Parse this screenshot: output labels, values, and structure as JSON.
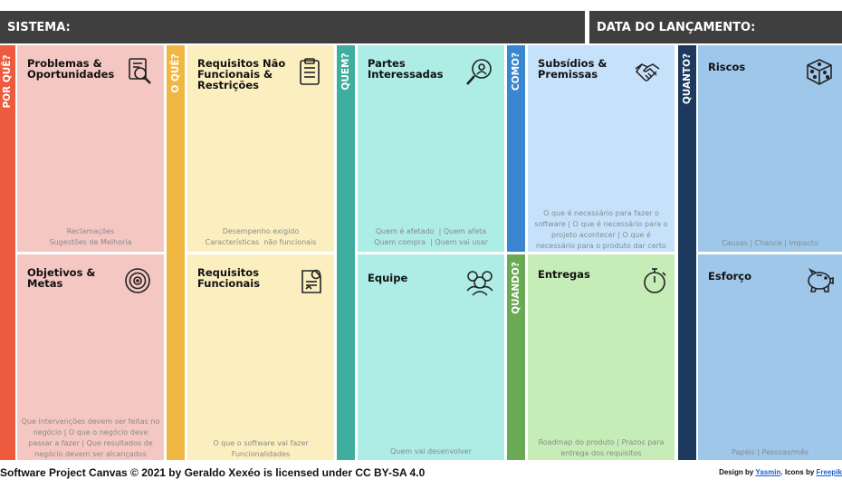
{
  "header": {
    "system_label": "SISTEMA:",
    "launch_label": "DATA DO LANÇAMENTO:"
  },
  "bands": {
    "por_que": "POR QUÊ?",
    "o_que": "O QUÊ?",
    "quem": "QUEM?",
    "como": "COMO?",
    "quando": "QUANDO?",
    "quanto": "QUANTO?"
  },
  "cells": {
    "problemas": {
      "title": "Problemas &\nOportunidades",
      "desc": "Reclamações\nSugestões de Melhoria",
      "icon": "magnifier-checklist-icon"
    },
    "objetivos": {
      "title": "Objetivos &\nMetas",
      "desc": "Que intervenções devem ser feitas no negócio | O que o negócio deve passar a fazer | Que resultados de negócio devem ser alcançados",
      "icon": "target-icon"
    },
    "requisitos_nf": {
      "title": "Requisitos Não\nFuncionais &\nRestrições",
      "desc": "Desempenho exigido\nCaracterísticas  não funcionais",
      "icon": "clipboard-icon"
    },
    "requisitos_f": {
      "title": "Requisitos\nFuncionais",
      "desc": "O que o software vai fazer\nFuncionalidades",
      "icon": "gear-document-icon"
    },
    "partes": {
      "title": "Partes\nInteressadas",
      "desc": "Quem é afetado  | Quem afeta\nQuem compra  | Quem vai usar",
      "icon": "search-person-icon"
    },
    "equipe": {
      "title": "Equipe",
      "desc": "Quem vai desenvolver",
      "icon": "team-icon"
    },
    "subsidios": {
      "title": "Subsídios &\nPremissas",
      "desc": "O que é necessário para fazer o software  | O que é necessário para o projeto acontecer  | O que é necessário para o produto dar certo",
      "icon": "handshake-icon"
    },
    "entregas": {
      "title": "Entregas",
      "desc": "Roadmap do produto | Prazos para entrega  dos requisitos",
      "icon": "stopwatch-icon"
    },
    "riscos": {
      "title": "Riscos",
      "desc": "Causas | Chance | Impacto",
      "icon": "dice-icon"
    },
    "esforco": {
      "title": "Esforço",
      "desc": "Papéis  | Pessoas/mês",
      "icon": "piggy-bank-icon"
    }
  },
  "colors": {
    "header": "#3f3f3f",
    "por_que_band": "#ee5a3d",
    "por_que_cell": "#f4c7c3",
    "o_que_band": "#f0b843",
    "o_que_cell": "#fcefbf",
    "quem_band": "#3fae9f",
    "quem_cell": "#aeece6",
    "como_band": "#3b86d0",
    "como_cell": "#c6e2fb",
    "quando_band": "#6aaa54",
    "quando_cell": "#c6edb7",
    "quanto_band": "#1d3a5e",
    "quanto_cell": "#9ec7ea"
  },
  "footer": {
    "license": "Software Project Canvas © 2021 by Geraldo  Xexéo is licensed under CC  BY-SA  4.0",
    "design_prefix": "Design by ",
    "designer": "Yasmin",
    "icons_prefix": ". Icons by ",
    "icons_source": "Freepik"
  }
}
